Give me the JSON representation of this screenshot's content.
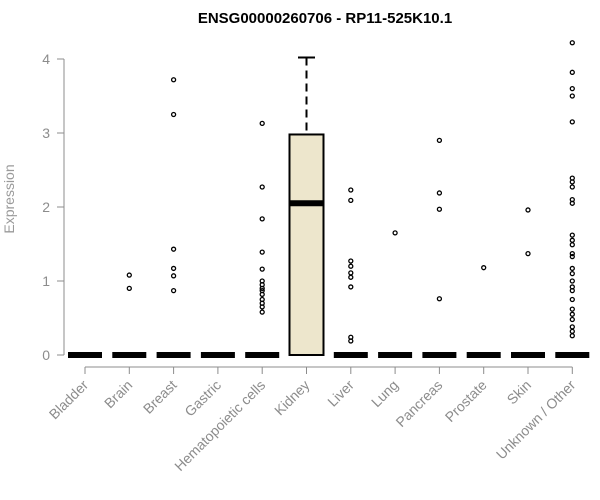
{
  "chart_data": {
    "type": "box",
    "title": "ENSG00000260706 - RP11-525K10.1",
    "ylabel": "Expression",
    "xlabel": "",
    "ylim": [
      0,
      4.2
    ],
    "yticks": [
      "0",
      "1",
      "2",
      "3",
      "4"
    ],
    "grid": false,
    "legend": "none",
    "colors": {
      "box_fill": "#ede6cc",
      "stroke": "#000000",
      "axis_text": "#8c8c8c"
    },
    "categories": [
      "Bladder",
      "Brain",
      "Breast",
      "Gastric",
      "Hematopoietic cells",
      "Kidney",
      "Liver",
      "Lung",
      "Pancreas",
      "Prostate",
      "Skin",
      "Unknown / Other"
    ],
    "boxes": [
      {
        "category": "Bladder",
        "q1": 0,
        "median": 0,
        "q3": 0,
        "whisker_low": 0,
        "whisker_high": 0,
        "outliers": []
      },
      {
        "category": "Brain",
        "q1": 0,
        "median": 0,
        "q3": 0,
        "whisker_low": 0,
        "whisker_high": 0,
        "outliers": [
          1.08,
          0.9
        ]
      },
      {
        "category": "Breast",
        "q1": 0,
        "median": 0,
        "q3": 0,
        "whisker_low": 0,
        "whisker_high": 0,
        "outliers": [
          3.72,
          3.25,
          1.43,
          1.17,
          1.07,
          0.87
        ]
      },
      {
        "category": "Gastric",
        "q1": 0,
        "median": 0,
        "q3": 0,
        "whisker_low": 0,
        "whisker_high": 0,
        "outliers": []
      },
      {
        "category": "Hematopoietic cells",
        "q1": 0,
        "median": 0,
        "q3": 0,
        "whisker_low": 0,
        "whisker_high": 0,
        "outliers": [
          3.13,
          2.27,
          1.84,
          1.39,
          1.16,
          1.0,
          0.95,
          0.9,
          0.87,
          0.82,
          0.75,
          0.7,
          0.65,
          0.58
        ]
      },
      {
        "category": "Kidney",
        "q1": 0,
        "median": 2.05,
        "q3": 2.98,
        "whisker_low": 0,
        "whisker_high": 4.02,
        "outliers": []
      },
      {
        "category": "Liver",
        "q1": 0,
        "median": 0,
        "q3": 0,
        "whisker_low": 0,
        "whisker_high": 0,
        "outliers": [
          2.23,
          2.09,
          1.27,
          1.2,
          1.11,
          1.05,
          0.92,
          0.24,
          0.19
        ]
      },
      {
        "category": "Lung",
        "q1": 0,
        "median": 0,
        "q3": 0,
        "whisker_low": 0,
        "whisker_high": 0,
        "outliers": [
          1.65
        ]
      },
      {
        "category": "Pancreas",
        "q1": 0,
        "median": 0,
        "q3": 0,
        "whisker_low": 0,
        "whisker_high": 0,
        "outliers": [
          2.9,
          2.19,
          1.97,
          0.76
        ]
      },
      {
        "category": "Prostate",
        "q1": 0,
        "median": 0,
        "q3": 0,
        "whisker_low": 0,
        "whisker_high": 0,
        "outliers": [
          1.18
        ]
      },
      {
        "category": "Skin",
        "q1": 0,
        "median": 0,
        "q3": 0,
        "whisker_low": 0,
        "whisker_high": 0,
        "outliers": [
          1.96,
          1.37
        ]
      },
      {
        "category": "Unknown / Other",
        "q1": 0,
        "median": 0,
        "q3": 0,
        "whisker_low": 0,
        "whisker_high": 0,
        "outliers": [
          4.22,
          3.82,
          3.6,
          3.5,
          3.15,
          2.39,
          2.34,
          2.27,
          2.1,
          2.05,
          1.62,
          1.55,
          1.49,
          1.37,
          1.33,
          1.17,
          1.1,
          1.0,
          0.92,
          0.87,
          0.75,
          0.62,
          0.55,
          0.48,
          0.38,
          0.32,
          0.26
        ]
      }
    ]
  }
}
